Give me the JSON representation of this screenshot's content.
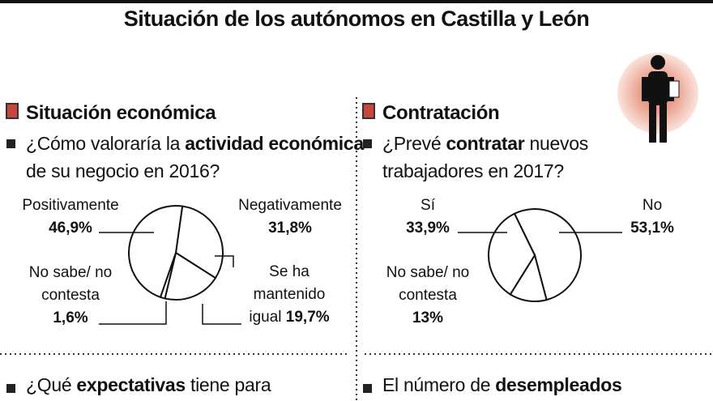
{
  "title": "Situación de los autónomos en Castilla y León",
  "chart_data": [
    {
      "type": "pie",
      "title": "Situación económica",
      "question": [
        "¿Cómo valoraría la ",
        "actividad económica",
        " de su negocio en 2016?"
      ],
      "categories": [
        "Negativamente",
        "Se ha mantenido igual",
        "No sabe/ no contesta",
        "Positivamente"
      ],
      "values": [
        31.8,
        19.7,
        1.6,
        46.9
      ],
      "value_labels": [
        "31,8%",
        "19,7%",
        "1,6%",
        "46,9%"
      ],
      "color": "#ffffff"
    },
    {
      "type": "pie",
      "title": "Contratación",
      "question": [
        "¿Prevé ",
        "contratar",
        " nuevos trabajadores en 2017?"
      ],
      "categories": [
        "No",
        "No sabe/ no contesta",
        "Sí"
      ],
      "values": [
        53.1,
        13,
        33.9
      ],
      "value_labels": [
        "53,1%",
        "13%",
        "33,9%"
      ],
      "color": "#ffffff"
    }
  ],
  "footer": [
    [
      "¿Qué ",
      "expectativas",
      " tiene para"
    ],
    [
      "El número de ",
      "desempleados"
    ]
  ]
}
